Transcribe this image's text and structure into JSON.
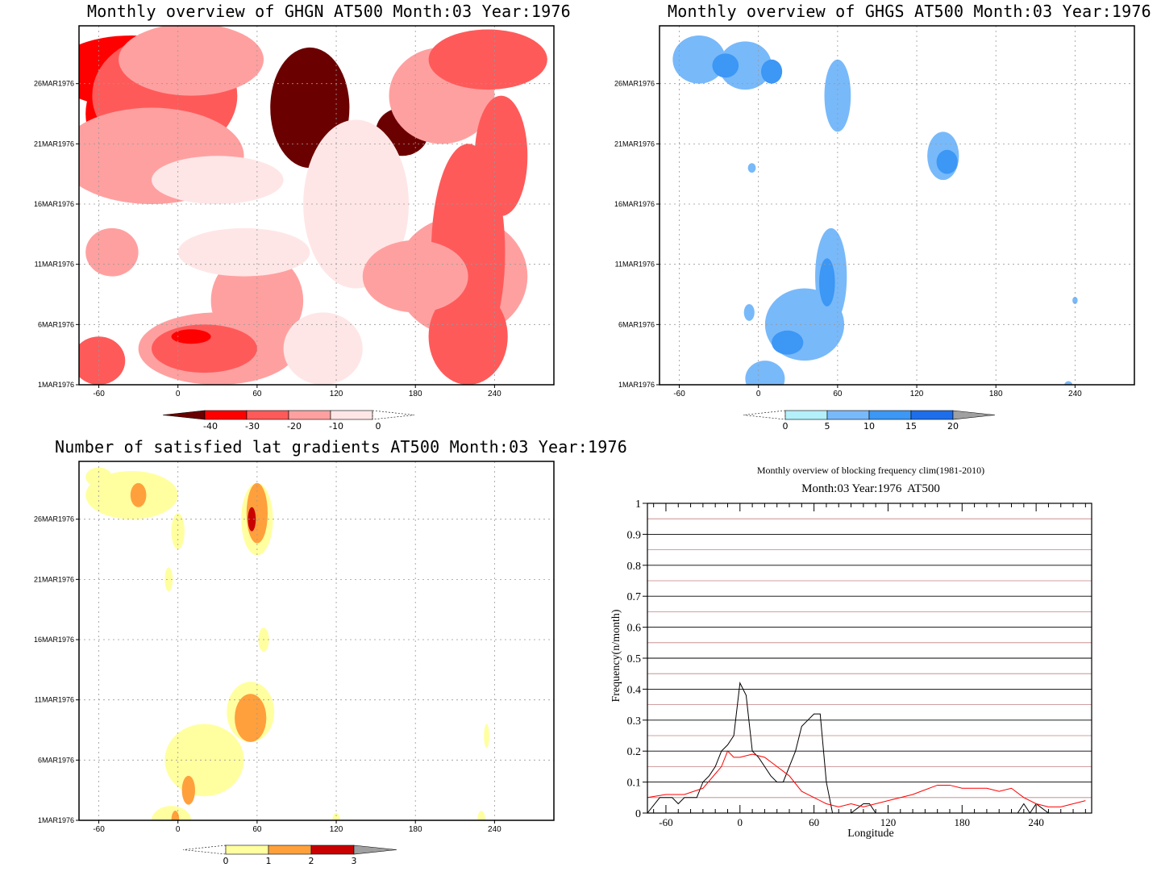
{
  "panels": [
    {
      "id": "ghgn",
      "title": "Monthly overview of GHGN AT500 Month:03 Year:1976",
      "yticks": [
        "1MAR1976",
        "6MAR1976",
        "11MAR1976",
        "16MAR1976",
        "21MAR1976",
        "26MAR1976"
      ],
      "xticks": [
        "-60",
        "0",
        "60",
        "120",
        "180",
        "240"
      ],
      "colorbar": {
        "ticks": [
          "-40",
          "-30",
          "-20",
          "-10",
          "0"
        ],
        "colors": [
          "#6b0000",
          "#ff0000",
          "#ff5a5a",
          "#ffa0a0",
          "#ffe6e6"
        ]
      }
    },
    {
      "id": "ghgs",
      "title": "Monthly overview of GHGS AT500 Month:03 Year:1976",
      "yticks": [
        "1MAR1976",
        "6MAR1976",
        "11MAR1976",
        "16MAR1976",
        "21MAR1976",
        "26MAR1976"
      ],
      "xticks": [
        "-60",
        "0",
        "60",
        "120",
        "180",
        "240"
      ],
      "colorbar": {
        "ticks": [
          "0",
          "5",
          "10",
          "15",
          "20"
        ],
        "colors": [
          "#b4f0fa",
          "#78b9fa",
          "#3c97f5",
          "#1e6eeb",
          "#a0a0a0"
        ]
      }
    },
    {
      "id": "gradients",
      "title": "Number of satisfied lat gradients AT500 Month:03 Year:1976",
      "yticks": [
        "1MAR1976",
        "6MAR1976",
        "11MAR1976",
        "16MAR1976",
        "21MAR1976",
        "26MAR1976"
      ],
      "xticks": [
        "-60",
        "0",
        "60",
        "120",
        "180",
        "240"
      ],
      "colorbar": {
        "ticks": [
          "0",
          "1",
          "2",
          "3"
        ],
        "colors": [
          "#ffffa0",
          "#ffa03c",
          "#c80000",
          "#a0a0a0"
        ]
      }
    }
  ],
  "chart_data": [
    {
      "type": "heatmap",
      "title": "Monthly overview of GHGN AT500 Month:03 Year:1976",
      "x_ticks": [
        -60,
        0,
        60,
        120,
        180,
        240
      ],
      "y_ticks": [
        "1MAR1976",
        "6MAR1976",
        "11MAR1976",
        "16MAR1976",
        "21MAR1976",
        "26MAR1976"
      ],
      "levels": [
        -40,
        -30,
        -20,
        -10,
        0
      ],
      "blobs": [
        {
          "x": -20,
          "y": 26.8,
          "rx": 35,
          "ry": 1.5,
          "c": 2
        },
        {
          "x": -30,
          "y": 23.5,
          "rx": 40,
          "ry": 4.5,
          "c": 1
        },
        {
          "x": -35,
          "y": 27,
          "rx": 60,
          "ry": 3,
          "c": 1
        },
        {
          "x": -10,
          "y": 25,
          "rx": 55,
          "ry": 5,
          "c": 2
        },
        {
          "x": -20,
          "y": 20,
          "rx": 70,
          "ry": 4,
          "c": 3
        },
        {
          "x": 10,
          "y": 28,
          "rx": 55,
          "ry": 3,
          "c": 3
        },
        {
          "x": 30,
          "y": 18,
          "rx": 50,
          "ry": 2,
          "c": 4
        },
        {
          "x": 100,
          "y": 24,
          "rx": 30,
          "ry": 5,
          "c": 5
        },
        {
          "x": 170,
          "y": 22,
          "rx": 20,
          "ry": 2,
          "c": 5
        },
        {
          "x": 135,
          "y": 16,
          "rx": 40,
          "ry": 7,
          "c": 4
        },
        {
          "x": 200,
          "y": 25,
          "rx": 40,
          "ry": 4,
          "c": 3
        },
        {
          "x": 235,
          "y": 28,
          "rx": 45,
          "ry": 2.5,
          "c": 2
        },
        {
          "x": 215,
          "y": 10,
          "rx": 50,
          "ry": 5,
          "c": 3
        },
        {
          "x": 220,
          "y": 12,
          "rx": 28,
          "ry": 9,
          "c": 2
        },
        {
          "x": 220,
          "y": 5,
          "rx": 30,
          "ry": 4,
          "c": 2
        },
        {
          "x": 245,
          "y": 20,
          "rx": 20,
          "ry": 5,
          "c": 2
        },
        {
          "x": 180,
          "y": 10,
          "rx": 40,
          "ry": 3,
          "c": 3
        },
        {
          "x": 60,
          "y": 8,
          "rx": 35,
          "ry": 4,
          "c": 3
        },
        {
          "x": 30,
          "y": 4,
          "rx": 60,
          "ry": 3,
          "c": 3
        },
        {
          "x": 20,
          "y": 4,
          "rx": 40,
          "ry": 2,
          "c": 2
        },
        {
          "x": 10,
          "y": 5,
          "rx": 15,
          "ry": 0.6,
          "c": 1
        },
        {
          "x": -60,
          "y": 3,
          "rx": 20,
          "ry": 2,
          "c": 2
        },
        {
          "x": 50,
          "y": 12,
          "rx": 50,
          "ry": 2,
          "c": 4
        },
        {
          "x": 110,
          "y": 4,
          "rx": 30,
          "ry": 3,
          "c": 4
        },
        {
          "x": -50,
          "y": 12,
          "rx": 20,
          "ry": 2,
          "c": 3
        }
      ]
    },
    {
      "type": "heatmap",
      "title": "Monthly overview of GHGS AT500 Month:03 Year:1976",
      "x_ticks": [
        -60,
        0,
        60,
        120,
        180,
        240
      ],
      "y_ticks": [
        "1MAR1976",
        "6MAR1976",
        "11MAR1976",
        "16MAR1976",
        "21MAR1976",
        "26MAR1976"
      ],
      "levels": [
        0,
        5,
        10,
        15,
        20
      ],
      "blobs": [
        {
          "x": -45,
          "y": 28,
          "rx": 20,
          "ry": 2,
          "c": 1
        },
        {
          "x": -10,
          "y": 27.5,
          "rx": 20,
          "ry": 2,
          "c": 1
        },
        {
          "x": -25,
          "y": 27.5,
          "rx": 10,
          "ry": 1,
          "c": 2
        },
        {
          "x": 10,
          "y": 27,
          "rx": 8,
          "ry": 1,
          "c": 2
        },
        {
          "x": 60,
          "y": 25,
          "rx": 10,
          "ry": 3,
          "c": 1
        },
        {
          "x": 140,
          "y": 20,
          "rx": 12,
          "ry": 2,
          "c": 1
        },
        {
          "x": 143,
          "y": 19.5,
          "rx": 8,
          "ry": 1,
          "c": 2
        },
        {
          "x": 35,
          "y": 6,
          "rx": 30,
          "ry": 3,
          "c": 1
        },
        {
          "x": 55,
          "y": 10,
          "rx": 12,
          "ry": 4,
          "c": 1
        },
        {
          "x": 22,
          "y": 4.5,
          "rx": 12,
          "ry": 1,
          "c": 2
        },
        {
          "x": 52,
          "y": 9.5,
          "rx": 6,
          "ry": 2,
          "c": 2
        },
        {
          "x": 5,
          "y": 1.5,
          "rx": 15,
          "ry": 1.5,
          "c": 1
        },
        {
          "x": -7,
          "y": 7,
          "rx": 4,
          "ry": 0.7,
          "c": 1
        },
        {
          "x": -5,
          "y": 19,
          "rx": 3,
          "ry": 0.4,
          "c": 1
        },
        {
          "x": 235,
          "y": 1,
          "rx": 3,
          "ry": 0.3,
          "c": 1
        },
        {
          "x": 240,
          "y": 8,
          "rx": 2,
          "ry": 0.3,
          "c": 1
        }
      ]
    },
    {
      "type": "heatmap",
      "title": "Number of satisfied lat gradients AT500 Month:03 Year:1976",
      "x_ticks": [
        -60,
        0,
        60,
        120,
        180,
        240
      ],
      "y_ticks": [
        "1MAR1976",
        "6MAR1976",
        "11MAR1976",
        "16MAR1976",
        "21MAR1976",
        "26MAR1976"
      ],
      "levels": [
        0,
        1,
        2,
        3
      ],
      "blobs": [
        {
          "x": -35,
          "y": 28,
          "rx": 35,
          "ry": 2,
          "c": 0
        },
        {
          "x": -30,
          "y": 28,
          "rx": 6,
          "ry": 1,
          "c": 1
        },
        {
          "x": -60,
          "y": 29.5,
          "rx": 10,
          "ry": 0.8,
          "c": 0
        },
        {
          "x": 0,
          "y": 25,
          "rx": 5,
          "ry": 1.5,
          "c": 0
        },
        {
          "x": 60,
          "y": 26,
          "rx": 12,
          "ry": 3,
          "c": 0
        },
        {
          "x": 60,
          "y": 26.5,
          "rx": 8,
          "ry": 2.5,
          "c": 1
        },
        {
          "x": 56,
          "y": 26,
          "rx": 3,
          "ry": 1,
          "c": 2
        },
        {
          "x": -7,
          "y": 21,
          "rx": 3,
          "ry": 1,
          "c": 0
        },
        {
          "x": 65,
          "y": 16,
          "rx": 4,
          "ry": 1,
          "c": 0
        },
        {
          "x": 55,
          "y": 10,
          "rx": 18,
          "ry": 2.5,
          "c": 0
        },
        {
          "x": 55,
          "y": 9.5,
          "rx": 12,
          "ry": 2,
          "c": 1
        },
        {
          "x": 20,
          "y": 6,
          "rx": 30,
          "ry": 3,
          "c": 0
        },
        {
          "x": 8,
          "y": 3.5,
          "rx": 5,
          "ry": 1.2,
          "c": 1
        },
        {
          "x": -5,
          "y": 1,
          "rx": 15,
          "ry": 1.2,
          "c": 0
        },
        {
          "x": -2,
          "y": 1,
          "rx": 3,
          "ry": 0.8,
          "c": 1
        },
        {
          "x": 120,
          "y": 1,
          "rx": 3,
          "ry": 0.6,
          "c": 0
        },
        {
          "x": 230,
          "y": 1,
          "rx": 3,
          "ry": 0.8,
          "c": 0
        },
        {
          "x": 234,
          "y": 8,
          "rx": 2,
          "ry": 1,
          "c": 0
        }
      ]
    },
    {
      "type": "line",
      "title": "Monthly overview of blocking frequency clim(1981-2010)",
      "subtitle": "Month:03 Year:1976  AT500",
      "xlabel": "Longitude",
      "ylabel": "Frequency(n/month)",
      "xlim": [
        -75,
        285
      ],
      "ylim": [
        0,
        1
      ],
      "x_ticks": [
        -60,
        0,
        60,
        120,
        180,
        240
      ],
      "y_ticks": [
        "0",
        "0.1",
        "0.2",
        "0.3",
        "0.4",
        "0.5",
        "0.6",
        "0.7",
        "0.8",
        "0.9",
        "1"
      ],
      "series": [
        {
          "color": "#000000",
          "x": [
            -75,
            -65,
            -55,
            -50,
            -45,
            -35,
            -30,
            -25,
            -20,
            -15,
            -10,
            -5,
            0,
            5,
            10,
            15,
            20,
            25,
            30,
            35,
            40,
            45,
            50,
            55,
            60,
            65,
            70,
            75,
            80,
            90,
            100,
            105,
            110,
            120,
            130,
            140,
            150,
            160,
            170,
            180,
            190,
            200,
            210,
            220,
            225,
            230,
            235,
            240,
            250,
            260,
            270,
            280
          ],
          "y": [
            0,
            0.05,
            0.05,
            0.03,
            0.05,
            0.05,
            0.1,
            0.12,
            0.15,
            0.2,
            0.22,
            0.25,
            0.42,
            0.38,
            0.2,
            0.18,
            0.15,
            0.12,
            0.1,
            0.1,
            0.15,
            0.2,
            0.28,
            0.3,
            0.32,
            0.32,
            0.1,
            0,
            0,
            0,
            0.03,
            0.03,
            0,
            0,
            0,
            0,
            0,
            0,
            0,
            0,
            0,
            0,
            0,
            0,
            0,
            0.03,
            0,
            0.03,
            0,
            0,
            0,
            0
          ]
        },
        {
          "color": "#ff0000",
          "x": [
            -75,
            -60,
            -45,
            -30,
            -15,
            -10,
            -5,
            0,
            10,
            20,
            30,
            40,
            50,
            60,
            70,
            80,
            90,
            100,
            120,
            140,
            160,
            170,
            180,
            190,
            200,
            210,
            220,
            230,
            240,
            250,
            260,
            270,
            280
          ],
          "y": [
            0.05,
            0.06,
            0.06,
            0.08,
            0.15,
            0.2,
            0.18,
            0.18,
            0.19,
            0.18,
            0.15,
            0.12,
            0.07,
            0.05,
            0.03,
            0.02,
            0.03,
            0.02,
            0.04,
            0.06,
            0.09,
            0.09,
            0.08,
            0.08,
            0.08,
            0.07,
            0.08,
            0.05,
            0.03,
            0.02,
            0.02,
            0.03,
            0.04
          ]
        }
      ]
    }
  ]
}
